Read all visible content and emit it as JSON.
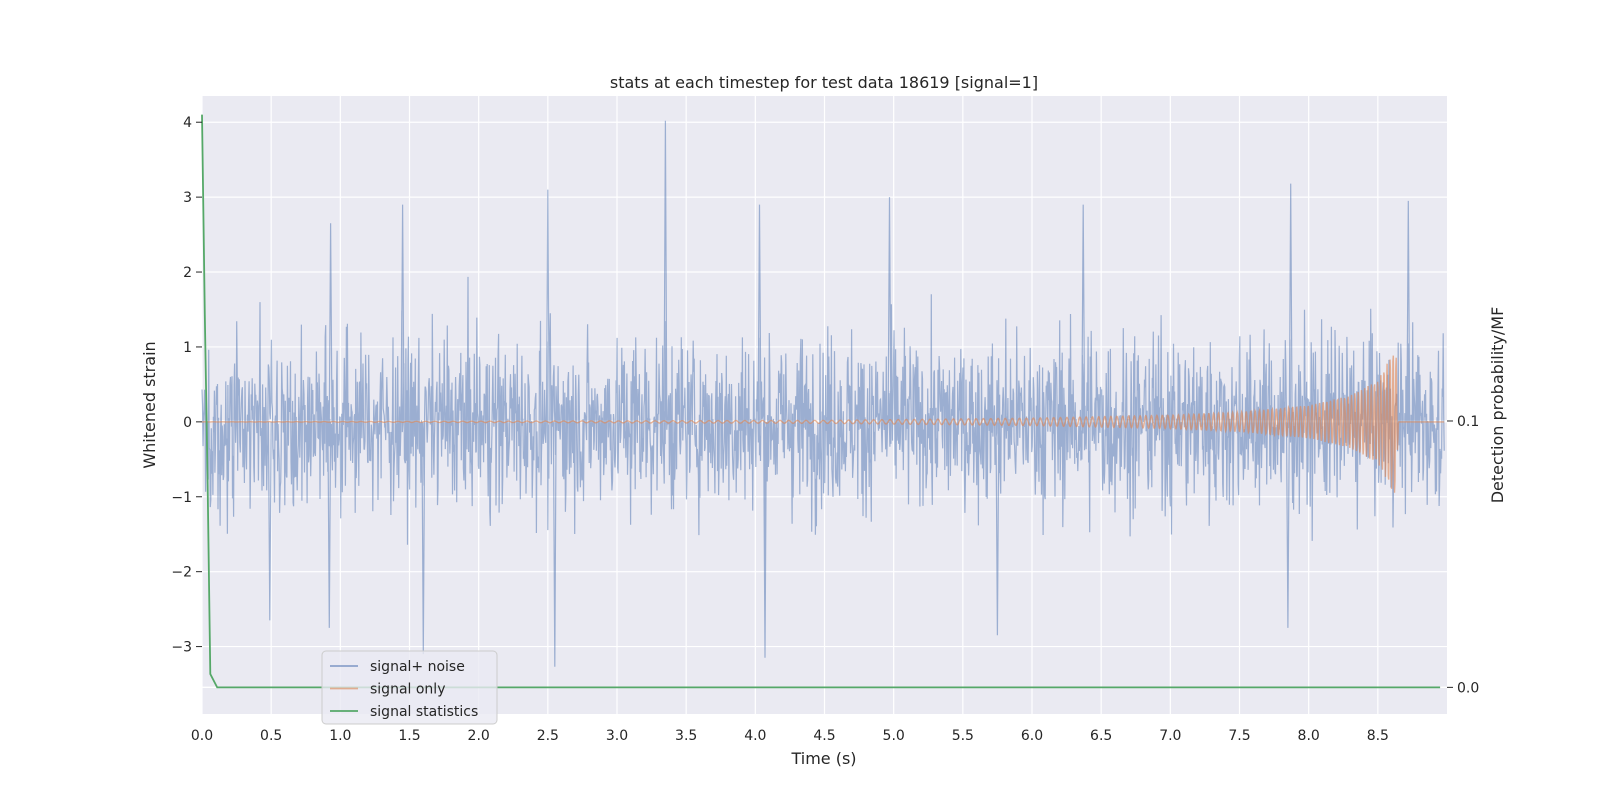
{
  "chart_data": {
    "type": "line",
    "title": "stats at each timestep for test data 18619 [signal=1]",
    "xlabel": "Time (s)",
    "ylabel": "Whitened strain",
    "y2label": "Detection probability/MF",
    "xlim": [
      0.0,
      9.0
    ],
    "ylim": [
      -3.9,
      4.35
    ],
    "y2lim": [
      -0.01,
      0.222
    ],
    "x_ticks": [
      "0.0",
      "0.5",
      "1.0",
      "1.5",
      "2.0",
      "2.5",
      "3.0",
      "3.5",
      "4.0",
      "4.5",
      "5.0",
      "5.5",
      "6.0",
      "6.5",
      "7.0",
      "7.5",
      "8.0",
      "8.5"
    ],
    "y_ticks": [
      "−3",
      "−2",
      "−1",
      "0",
      "1",
      "2",
      "3",
      "4"
    ],
    "y2_ticks": [
      "0.0",
      "0.1"
    ],
    "grid": true,
    "legend_position": "lower-left",
    "background": "#eaeaf2",
    "series": [
      {
        "name": "signal+ noise",
        "color": "#4c72b0",
        "opacity": 0.5,
        "axis": "left",
        "envelope_peaks": [
          {
            "x": 0.93,
            "y": 2.65
          },
          {
            "x": 1.45,
            "y": 2.9
          },
          {
            "x": 2.5,
            "y": 3.1
          },
          {
            "x": 3.35,
            "y": 4.02
          },
          {
            "x": 4.03,
            "y": 2.9
          },
          {
            "x": 4.97,
            "y": 3.0
          },
          {
            "x": 6.37,
            "y": 2.9
          },
          {
            "x": 7.87,
            "y": 3.18
          },
          {
            "x": 8.72,
            "y": 2.95
          }
        ],
        "envelope_troughs": [
          {
            "x": 0.49,
            "y": -2.65
          },
          {
            "x": 0.92,
            "y": -2.75
          },
          {
            "x": 1.6,
            "y": -3.1
          },
          {
            "x": 2.55,
            "y": -3.27
          },
          {
            "x": 4.07,
            "y": -3.15
          },
          {
            "x": 5.75,
            "y": -2.85
          },
          {
            "x": 7.85,
            "y": -2.75
          }
        ]
      },
      {
        "name": "signal only",
        "color": "#dd8452",
        "opacity": 0.6,
        "axis": "left",
        "amplitude_points": [
          {
            "x": 0.0,
            "y": 0.0
          },
          {
            "x": 4.5,
            "y": 0.02
          },
          {
            "x": 6.0,
            "y": 0.05
          },
          {
            "x": 7.0,
            "y": 0.09
          },
          {
            "x": 7.5,
            "y": 0.13
          },
          {
            "x": 8.0,
            "y": 0.22
          },
          {
            "x": 8.3,
            "y": 0.35
          },
          {
            "x": 8.5,
            "y": 0.55
          },
          {
            "x": 8.63,
            "y": 1.0
          },
          {
            "x": 8.65,
            "y": 0.0
          },
          {
            "x": 9.0,
            "y": 0.0
          }
        ]
      },
      {
        "name": "signal statistics",
        "color": "#55a868",
        "opacity": 1.0,
        "axis": "right",
        "points": [
          {
            "x": 0.0,
            "y": 0.215
          },
          {
            "x": 0.02,
            "y": 0.14
          },
          {
            "x": 0.04,
            "y": 0.08
          },
          {
            "x": 0.06,
            "y": 0.005
          },
          {
            "x": 0.11,
            "y": 0.0
          },
          {
            "x": 8.95,
            "y": 0.0
          }
        ]
      }
    ]
  }
}
